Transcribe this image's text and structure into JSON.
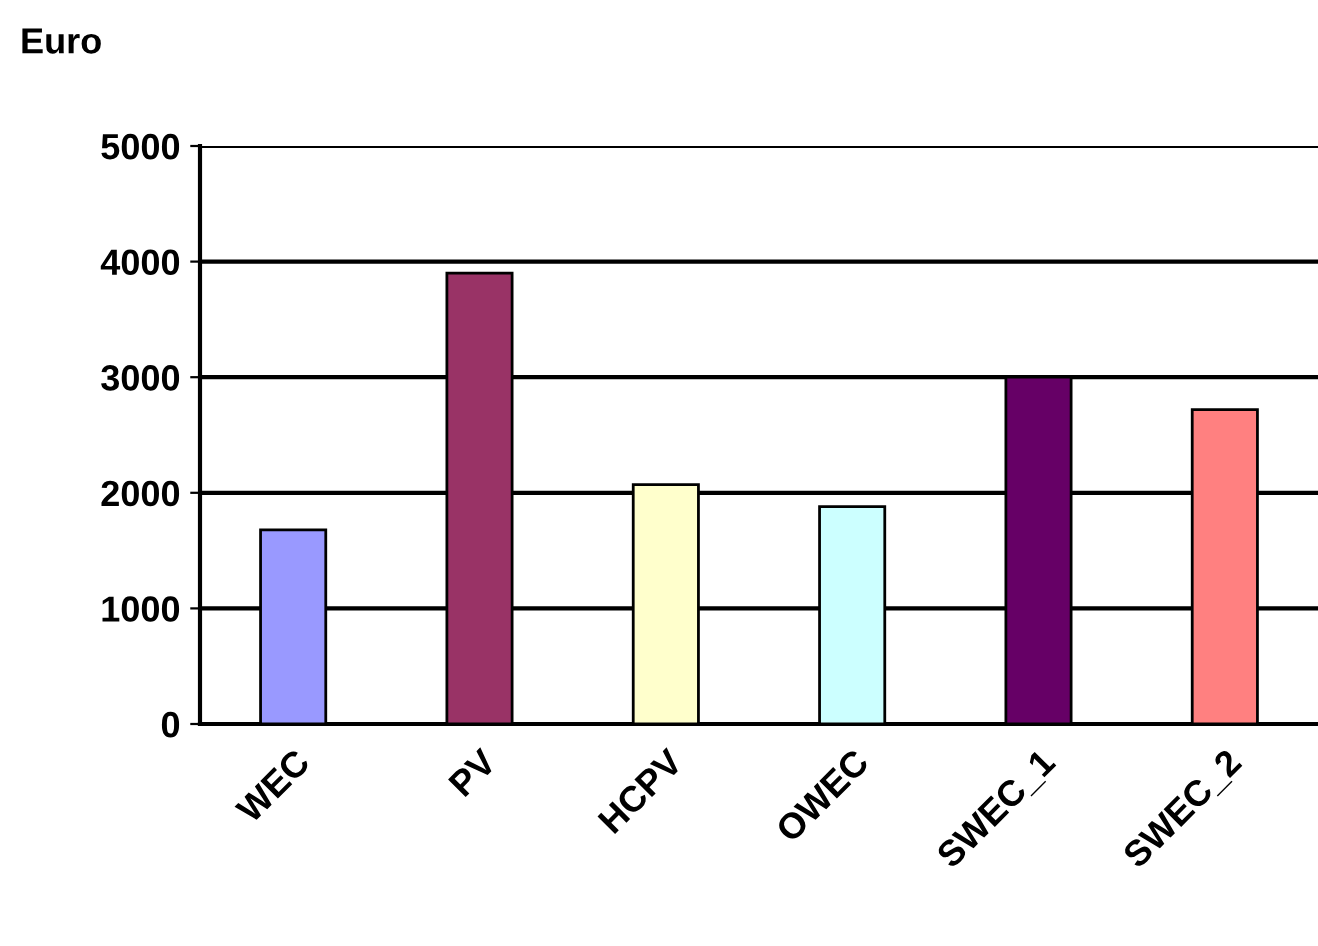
{
  "chart_data": {
    "type": "bar",
    "ylabel": "Euro",
    "categories": [
      "WEC",
      "PV",
      "HCPV",
      "OWEC",
      "SWEC_1",
      "SWEC_2"
    ],
    "values": [
      1680,
      3900,
      2070,
      1880,
      3000,
      2720
    ],
    "colors": [
      "#9999ff",
      "#993366",
      "#ffffcc",
      "#ccffff",
      "#660066",
      "#ff8080"
    ],
    "ylim": [
      0,
      5000
    ],
    "yticks": [
      0,
      1000,
      2000,
      3000,
      4000,
      5000
    ],
    "grid": "y",
    "legend": false
  }
}
